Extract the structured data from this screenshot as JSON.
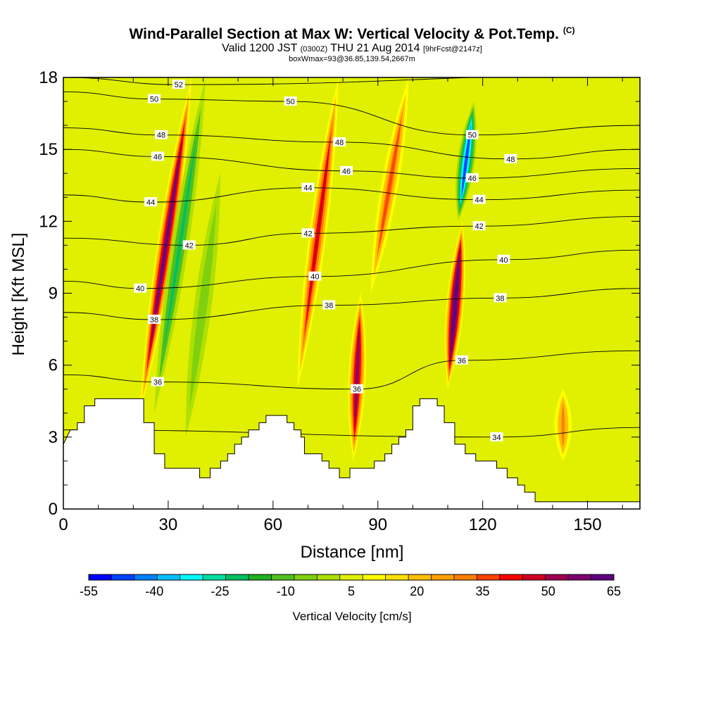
{
  "chart_data": {
    "type": "heatmap",
    "title": "Wind-Parallel Section at Max W: Vertical Velocity & Pot.Temp.",
    "title_mark": "(C)",
    "subtitle_parts": [
      "Valid 1200 JST",
      "(0300Z)",
      "THU 21 Aug 2014",
      "[9hrFcst@2147z]"
    ],
    "subtitle2": "boxWmax=93@36.85,139.54,2667m",
    "xlabel": "Distance [nm]",
    "ylabel": "Height [Kft MSL]",
    "xlim": [
      0,
      165
    ],
    "ylim": [
      0,
      18
    ],
    "x_ticks": [
      "0",
      "30",
      "60",
      "90",
      "120",
      "150"
    ],
    "y_ticks": [
      "0",
      "3",
      "6",
      "9",
      "12",
      "15",
      "18"
    ],
    "colorbar": {
      "label": "Vertical Velocity [cm/s]",
      "tick_labels": [
        "-55",
        "-40",
        "-25",
        "-10",
        "5",
        "20",
        "35",
        "50",
        "65"
      ],
      "colors": [
        "#0000ff",
        "#0040ff",
        "#0080ff",
        "#00c0ff",
        "#00ffff",
        "#00e0a0",
        "#00c060",
        "#20b020",
        "#50c020",
        "#80d010",
        "#b0e000",
        "#e0f000",
        "#ffff00",
        "#ffe000",
        "#ffc000",
        "#ff9f00",
        "#ff7f00",
        "#ff4000",
        "#ff0000",
        "#d00020",
        "#a00050",
        "#800070",
        "#600080"
      ]
    },
    "velocity_features": [
      {
        "x": 22,
        "y_bottom": 4,
        "y_top": 18,
        "w": 55,
        "lean": 0.35
      },
      {
        "x": 26,
        "y_bottom": 4,
        "y_top": 18,
        "w": -25,
        "lean": 0.35
      },
      {
        "x": 35,
        "y_bottom": 3,
        "y_top": 14,
        "w": -10,
        "lean": 0.3
      },
      {
        "x": 67,
        "y_bottom": 5,
        "y_top": 18,
        "w": 40,
        "lean": 0.3
      },
      {
        "x": 83,
        "y_bottom": 2,
        "y_top": 9,
        "w": 50,
        "lean": 0.1
      },
      {
        "x": 88,
        "y_bottom": 9,
        "y_top": 18,
        "w": 30,
        "lean": 0.4
      },
      {
        "x": 110,
        "y_bottom": 5,
        "y_top": 12,
        "w": 65,
        "lean": 0.2
      },
      {
        "x": 113,
        "y_bottom": 12,
        "y_top": 17,
        "w": -50,
        "lean": 0.3
      },
      {
        "x": 143,
        "y_bottom": 2,
        "y_top": 5,
        "w": 25,
        "lean": 0
      }
    ],
    "theta_contours": [
      {
        "label": "34",
        "label_x": 124,
        "label_y": 3.0
      },
      {
        "label": "36",
        "label_x": 27,
        "label_y": 5.3
      },
      {
        "label": "36",
        "label_x": 84,
        "label_y": 5.0
      },
      {
        "label": "36",
        "label_x": 114,
        "label_y": 6.2
      },
      {
        "label": "38",
        "label_x": 26,
        "label_y": 7.9
      },
      {
        "label": "38",
        "label_x": 76,
        "label_y": 8.5
      },
      {
        "label": "38",
        "label_x": 125,
        "label_y": 8.8
      },
      {
        "label": "40",
        "label_x": 22,
        "label_y": 9.2
      },
      {
        "label": "40",
        "label_x": 72,
        "label_y": 9.7
      },
      {
        "label": "40",
        "label_x": 126,
        "label_y": 10.4
      },
      {
        "label": "42",
        "label_x": 36,
        "label_y": 11.0
      },
      {
        "label": "42",
        "label_x": 70,
        "label_y": 11.5
      },
      {
        "label": "42",
        "label_x": 119,
        "label_y": 11.8
      },
      {
        "label": "44",
        "label_x": 25,
        "label_y": 12.8
      },
      {
        "label": "44",
        "label_x": 70,
        "label_y": 13.4
      },
      {
        "label": "44",
        "label_x": 119,
        "label_y": 12.9
      },
      {
        "label": "46",
        "label_x": 27,
        "label_y": 14.7
      },
      {
        "label": "46",
        "label_x": 81,
        "label_y": 14.1
      },
      {
        "label": "46",
        "label_x": 117,
        "label_y": 13.8
      },
      {
        "label": "48",
        "label_x": 28,
        "label_y": 15.6
      },
      {
        "label": "48",
        "label_x": 79,
        "label_y": 15.3
      },
      {
        "label": "48",
        "label_x": 128,
        "label_y": 14.6
      },
      {
        "label": "50",
        "label_x": 26,
        "label_y": 17.1
      },
      {
        "label": "50",
        "label_x": 65,
        "label_y": 17.0
      },
      {
        "label": "50",
        "label_x": 117,
        "label_y": 15.6
      },
      {
        "label": "52",
        "label_x": 33,
        "label_y": 17.7
      }
    ],
    "terrain_kft": [
      [
        0,
        2.7
      ],
      [
        2,
        3.3
      ],
      [
        4,
        3.3
      ],
      [
        4,
        3.6
      ],
      [
        6,
        3.6
      ],
      [
        6,
        4.3
      ],
      [
        9,
        4.3
      ],
      [
        9,
        4.6
      ],
      [
        23,
        4.6
      ],
      [
        23,
        3.6
      ],
      [
        26,
        3.6
      ],
      [
        26,
        2.3
      ],
      [
        29,
        2.3
      ],
      [
        29,
        1.7
      ],
      [
        39,
        1.7
      ],
      [
        39,
        1.3
      ],
      [
        42,
        1.3
      ],
      [
        42,
        1.7
      ],
      [
        45,
        1.7
      ],
      [
        45,
        2.0
      ],
      [
        47,
        2.0
      ],
      [
        47,
        2.3
      ],
      [
        49,
        2.3
      ],
      [
        49,
        2.7
      ],
      [
        51,
        2.7
      ],
      [
        51,
        3.0
      ],
      [
        53,
        3.0
      ],
      [
        53,
        3.3
      ],
      [
        56,
        3.3
      ],
      [
        56,
        3.6
      ],
      [
        58,
        3.6
      ],
      [
        58,
        3.9
      ],
      [
        64,
        3.9
      ],
      [
        64,
        3.6
      ],
      [
        66,
        3.6
      ],
      [
        66,
        3.3
      ],
      [
        68,
        3.3
      ],
      [
        68,
        3.0
      ],
      [
        69,
        3.0
      ],
      [
        69,
        2.3
      ],
      [
        74,
        2.3
      ],
      [
        74,
        2.0
      ],
      [
        76,
        2.0
      ],
      [
        76,
        1.7
      ],
      [
        79,
        1.7
      ],
      [
        79,
        1.3
      ],
      [
        82,
        1.3
      ],
      [
        82,
        1.7
      ],
      [
        89,
        1.7
      ],
      [
        89,
        2.0
      ],
      [
        92,
        2.0
      ],
      [
        92,
        2.3
      ],
      [
        94,
        2.3
      ],
      [
        94,
        2.7
      ],
      [
        96,
        2.7
      ],
      [
        96,
        3.0
      ],
      [
        98,
        3.0
      ],
      [
        98,
        3.3
      ],
      [
        100,
        3.3
      ],
      [
        100,
        4.3
      ],
      [
        102,
        4.3
      ],
      [
        102,
        4.6
      ],
      [
        107,
        4.6
      ],
      [
        107,
        4.3
      ],
      [
        109,
        4.3
      ],
      [
        109,
        3.6
      ],
      [
        112,
        3.6
      ],
      [
        112,
        2.7
      ],
      [
        115,
        2.7
      ],
      [
        115,
        2.3
      ],
      [
        118,
        2.3
      ],
      [
        118,
        2.0
      ],
      [
        124,
        2.0
      ],
      [
        124,
        1.7
      ],
      [
        127,
        1.7
      ],
      [
        127,
        1.3
      ],
      [
        130,
        1.3
      ],
      [
        130,
        1.0
      ],
      [
        132,
        1.0
      ],
      [
        132,
        0.7
      ],
      [
        135,
        0.7
      ],
      [
        135,
        0.3
      ],
      [
        165,
        0.3
      ]
    ]
  }
}
